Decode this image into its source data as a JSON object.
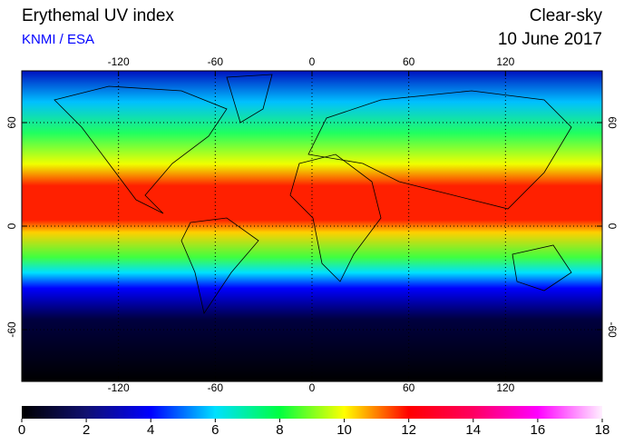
{
  "chart_data": {
    "type": "map",
    "title": "Erythemal UV index",
    "subtitle": "KNMI / ESA",
    "condition": "Clear-sky",
    "date": "10 June 2017",
    "xlim": [
      -180,
      180
    ],
    "ylim": [
      -90,
      90
    ],
    "xticks": [
      -120,
      -60,
      0,
      60,
      120
    ],
    "yticks": [
      -60,
      0,
      60
    ],
    "grid": true,
    "colorbar": {
      "lim": [
        0,
        18
      ],
      "ticks": [
        0,
        2,
        4,
        6,
        8,
        10,
        12,
        14,
        16,
        18
      ],
      "colors": [
        "#000000",
        "#101070",
        "#0000ff",
        "#00e0ff",
        "#00ff40",
        "#ffff00",
        "#ff0000",
        "#ff0060",
        "#ff00ff",
        "#fff0ff"
      ]
    }
  }
}
